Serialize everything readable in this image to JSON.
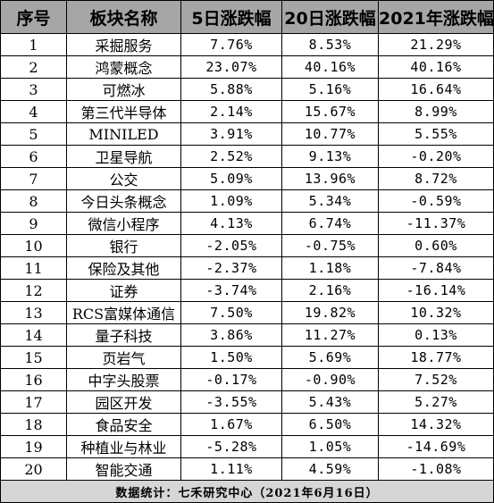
{
  "table": {
    "headers": [
      "序号",
      "板块名称",
      "5日涨跌幅",
      "20日涨跌幅",
      "2021年涨跌幅"
    ],
    "rows": [
      [
        "1",
        "采掘服务",
        "7.76%",
        "8.53%",
        "21.29%"
      ],
      [
        "2",
        "鸿蒙概念",
        "23.07%",
        "40.16%",
        "40.16%"
      ],
      [
        "3",
        "可燃冰",
        "5.88%",
        "5.16%",
        "16.64%"
      ],
      [
        "4",
        "第三代半导体",
        "2.14%",
        "15.67%",
        "8.99%"
      ],
      [
        "5",
        "MINILED",
        "3.91%",
        "10.77%",
        "5.55%"
      ],
      [
        "6",
        "卫星导航",
        "2.52%",
        "9.13%",
        "-0.20%"
      ],
      [
        "7",
        "公交",
        "5.09%",
        "13.96%",
        "8.72%"
      ],
      [
        "8",
        "今日头条概念",
        "1.09%",
        "5.34%",
        "-0.59%"
      ],
      [
        "9",
        "微信小程序",
        "4.13%",
        "6.74%",
        "-11.37%"
      ],
      [
        "10",
        "银行",
        "-2.05%",
        "-0.75%",
        "0.60%"
      ],
      [
        "11",
        "保险及其他",
        "-2.37%",
        "1.18%",
        "-7.84%"
      ],
      [
        "12",
        "证券",
        "-3.74%",
        "2.16%",
        "-16.14%"
      ],
      [
        "13",
        "RCS富媒体通信",
        "7.50%",
        "19.82%",
        "10.32%"
      ],
      [
        "14",
        "量子科技",
        "3.86%",
        "11.27%",
        "0.13%"
      ],
      [
        "15",
        "页岩气",
        "1.50%",
        "5.69%",
        "18.77%"
      ],
      [
        "16",
        "中字头股票",
        "-0.17%",
        "-0.90%",
        "7.52%"
      ],
      [
        "17",
        "园区开发",
        "-3.55%",
        "5.43%",
        "5.27%"
      ],
      [
        "18",
        "食品安全",
        "1.67%",
        "6.50%",
        "14.32%"
      ],
      [
        "19",
        "种植业与林业",
        "-5.28%",
        "1.05%",
        "-14.69%"
      ],
      [
        "20",
        "智能交通",
        "1.11%",
        "4.59%",
        "-1.08%"
      ]
    ],
    "footer": "数据统计：七禾研究中心（2021年6月16日）"
  },
  "colors": {
    "header_bg": "#a6a6a6",
    "footer_bg": "#d6d6d6",
    "border": "#000000"
  }
}
